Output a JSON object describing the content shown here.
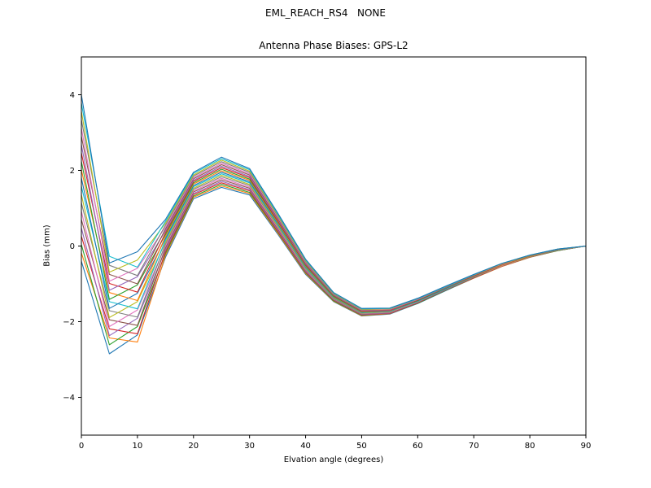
{
  "chart_data": {
    "type": "line",
    "suptitle": "EML_REACH_RS4   NONE",
    "title": "Antenna Phase Biases: GPS-L2",
    "xlabel": "Elvation angle (degrees)",
    "ylabel": "Bias (mm)",
    "xlim": [
      0,
      90
    ],
    "ylim": [
      -5,
      5
    ],
    "xticks": [
      0,
      10,
      20,
      30,
      40,
      50,
      60,
      70,
      80,
      90
    ],
    "yticks": [
      -4,
      -2,
      0,
      2,
      4
    ],
    "grid": false,
    "legend": "none",
    "palette": [
      "#1f77b4",
      "#ff7f0e",
      "#2ca02c",
      "#d62728",
      "#9467bd",
      "#8c564b",
      "#e377c2",
      "#7f7f7f",
      "#bcbd22",
      "#17becf"
    ],
    "x": [
      0,
      5,
      10,
      15,
      20,
      25,
      30,
      35,
      40,
      45,
      50,
      55,
      60,
      65,
      70,
      75,
      80,
      85,
      90
    ],
    "series": [
      {
        "name": "line-01",
        "values": [
          -0.4,
          -2.85,
          -2.35,
          -0.3,
          1.25,
          1.55,
          1.35,
          0.32,
          -0.75,
          -1.47,
          -1.85,
          -1.8,
          -1.52,
          -1.18,
          -0.85,
          -0.54,
          -0.3,
          -0.12,
          0.0
        ]
      },
      {
        "name": "line-02",
        "values": [
          -0.18,
          -2.43,
          -2.54,
          -0.25,
          1.29,
          1.59,
          1.39,
          0.35,
          -0.73,
          -1.46,
          -1.84,
          -1.79,
          -1.51,
          -1.17,
          -0.85,
          -0.54,
          -0.3,
          -0.12,
          0.0
        ]
      },
      {
        "name": "line-03",
        "values": [
          0.04,
          -2.61,
          -2.13,
          -0.2,
          1.32,
          1.63,
          1.42,
          0.38,
          -0.71,
          -1.45,
          -1.83,
          -1.78,
          -1.51,
          -1.17,
          -0.84,
          -0.53,
          -0.29,
          -0.12,
          0.0
        ]
      },
      {
        "name": "line-04",
        "values": [
          0.26,
          -2.19,
          -2.32,
          -0.15,
          1.36,
          1.67,
          1.46,
          0.4,
          -0.69,
          -1.43,
          -1.82,
          -1.78,
          -1.5,
          -1.16,
          -0.84,
          -0.53,
          -0.29,
          -0.11,
          0.0
        ]
      },
      {
        "name": "line-05",
        "values": [
          0.48,
          -2.37,
          -1.91,
          -0.1,
          1.39,
          1.71,
          1.49,
          0.43,
          -0.67,
          -1.42,
          -1.81,
          -1.77,
          -1.49,
          -1.16,
          -0.83,
          -0.52,
          -0.29,
          -0.11,
          0.0
        ]
      },
      {
        "name": "line-06",
        "values": [
          0.7,
          -1.95,
          -2.1,
          -0.05,
          1.43,
          1.75,
          1.53,
          0.46,
          -0.65,
          -1.41,
          -1.8,
          -1.76,
          -1.49,
          -1.15,
          -0.83,
          -0.52,
          -0.29,
          -0.11,
          0.0
        ]
      },
      {
        "name": "line-07",
        "values": [
          0.92,
          -2.13,
          -1.69,
          0.0,
          1.46,
          1.79,
          1.56,
          0.49,
          -0.63,
          -1.4,
          -1.79,
          -1.75,
          -1.48,
          -1.14,
          -0.82,
          -0.52,
          -0.28,
          -0.11,
          0.0
        ]
      },
      {
        "name": "line-08",
        "values": [
          1.14,
          -1.71,
          -1.88,
          0.05,
          1.5,
          1.83,
          1.6,
          0.52,
          -0.61,
          -1.39,
          -1.78,
          -1.74,
          -1.47,
          -1.14,
          -0.82,
          -0.51,
          -0.28,
          -0.11,
          0.0
        ]
      },
      {
        "name": "line-09",
        "values": [
          1.36,
          -1.89,
          -1.47,
          0.1,
          1.53,
          1.87,
          1.63,
          0.54,
          -0.59,
          -1.37,
          -1.77,
          -1.74,
          -1.46,
          -1.13,
          -0.81,
          -0.51,
          -0.28,
          -0.1,
          0.0
        ]
      },
      {
        "name": "line-10",
        "values": [
          1.58,
          -1.47,
          -1.66,
          0.15,
          1.57,
          1.91,
          1.67,
          0.57,
          -0.57,
          -1.36,
          -1.76,
          -1.73,
          -1.46,
          -1.13,
          -0.81,
          -0.5,
          -0.27,
          -0.1,
          0.0
        ]
      },
      {
        "name": "line-11",
        "values": [
          1.8,
          -1.65,
          -1.25,
          0.2,
          1.6,
          1.95,
          1.7,
          0.6,
          -0.55,
          -1.35,
          -1.75,
          -1.72,
          -1.45,
          -1.12,
          -0.8,
          -0.5,
          -0.27,
          -0.1,
          0.0
        ]
      },
      {
        "name": "line-12",
        "values": [
          2.02,
          -1.23,
          -1.44,
          0.25,
          1.64,
          1.99,
          1.74,
          0.63,
          -0.53,
          -1.34,
          -1.74,
          -1.71,
          -1.44,
          -1.11,
          -0.8,
          -0.5,
          -0.27,
          -0.1,
          0.0
        ]
      },
      {
        "name": "line-13",
        "values": [
          2.24,
          -1.41,
          -1.03,
          0.3,
          1.67,
          2.03,
          1.77,
          0.66,
          -0.51,
          -1.33,
          -1.73,
          -1.7,
          -1.44,
          -1.11,
          -0.79,
          -0.49,
          -0.26,
          -0.1,
          0.0
        ]
      },
      {
        "name": "line-14",
        "values": [
          2.46,
          -0.99,
          -1.22,
          0.35,
          1.71,
          2.07,
          1.81,
          0.68,
          -0.49,
          -1.31,
          -1.72,
          -1.7,
          -1.43,
          -1.1,
          -0.79,
          -0.49,
          -0.26,
          -0.09,
          0.0
        ]
      },
      {
        "name": "line-15",
        "values": [
          2.68,
          -1.17,
          -0.81,
          0.4,
          1.74,
          2.11,
          1.84,
          0.71,
          -0.47,
          -1.3,
          -1.71,
          -1.69,
          -1.42,
          -1.1,
          -0.78,
          -0.48,
          -0.26,
          -0.09,
          0.0
        ]
      },
      {
        "name": "line-16",
        "values": [
          2.9,
          -0.75,
          -1.0,
          0.45,
          1.78,
          2.15,
          1.88,
          0.74,
          -0.45,
          -1.29,
          -1.7,
          -1.68,
          -1.42,
          -1.09,
          -0.78,
          -0.48,
          -0.26,
          -0.09,
          0.0
        ]
      },
      {
        "name": "line-17",
        "values": [
          3.12,
          -0.93,
          -0.59,
          0.5,
          1.81,
          2.19,
          1.91,
          0.77,
          -0.43,
          -1.28,
          -1.69,
          -1.67,
          -1.41,
          -1.08,
          -0.77,
          -0.48,
          -0.25,
          -0.09,
          0.0
        ]
      },
      {
        "name": "line-18",
        "values": [
          3.34,
          -0.51,
          -0.78,
          0.55,
          1.85,
          2.23,
          1.95,
          0.8,
          -0.41,
          -1.27,
          -1.68,
          -1.66,
          -1.4,
          -1.08,
          -0.77,
          -0.47,
          -0.25,
          -0.09,
          0.0
        ]
      },
      {
        "name": "line-19",
        "values": [
          3.56,
          -0.69,
          -0.37,
          0.6,
          1.88,
          2.27,
          1.98,
          0.82,
          -0.39,
          -1.25,
          -1.67,
          -1.66,
          -1.39,
          -1.07,
          -0.76,
          -0.47,
          -0.25,
          -0.08,
          0.0
        ]
      },
      {
        "name": "line-20",
        "values": [
          3.78,
          -0.27,
          -0.56,
          0.65,
          1.92,
          2.31,
          2.02,
          0.85,
          -0.37,
          -1.24,
          -1.66,
          -1.65,
          -1.39,
          -1.07,
          -0.76,
          -0.46,
          -0.24,
          -0.08,
          0.0
        ]
      },
      {
        "name": "line-21",
        "values": [
          4.0,
          -0.45,
          -0.15,
          0.7,
          1.95,
          2.35,
          2.05,
          0.88,
          -0.35,
          -1.23,
          -1.65,
          -1.64,
          -1.38,
          -1.06,
          -0.75,
          -0.46,
          -0.24,
          -0.08,
          0.0
        ]
      }
    ]
  }
}
